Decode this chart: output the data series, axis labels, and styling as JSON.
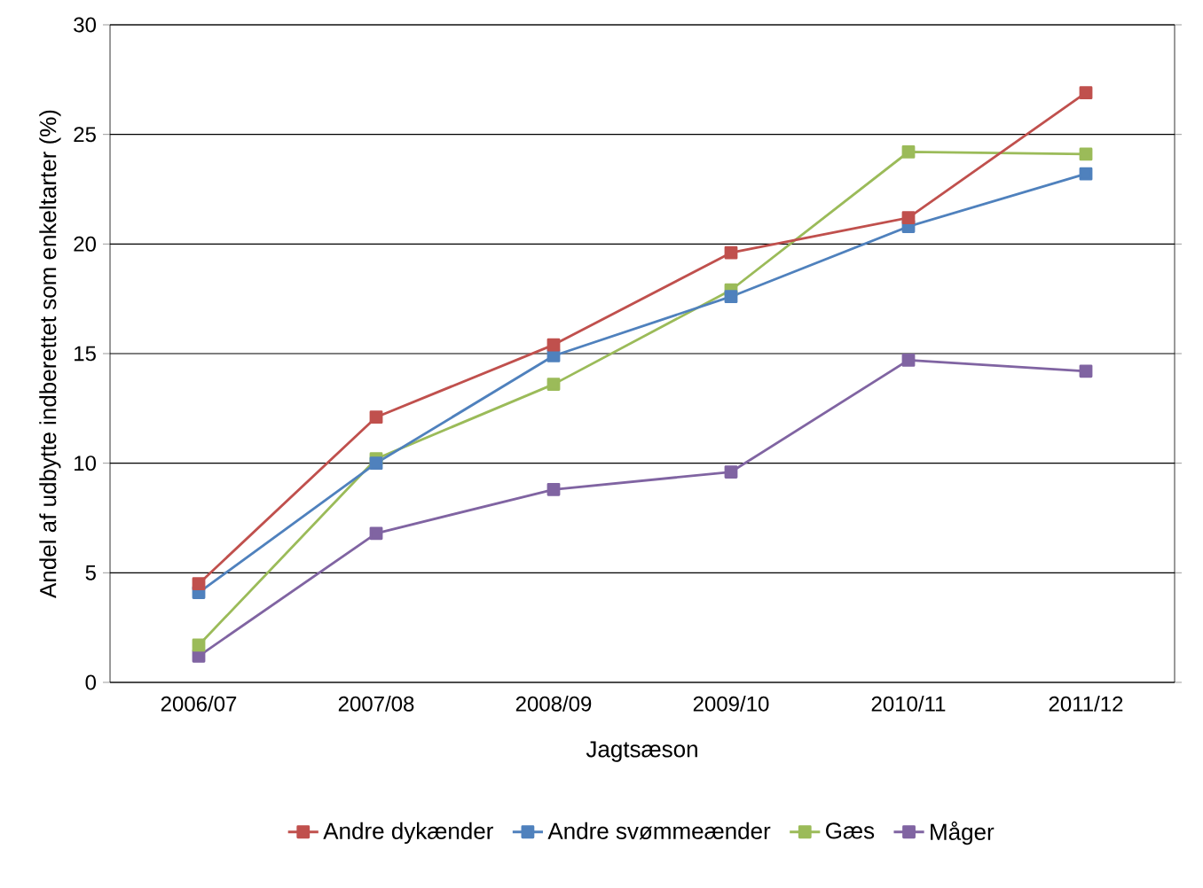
{
  "chart_data": {
    "type": "line",
    "xlabel": "Jagtsæson",
    "ylabel": "Andel af udbytte indberettet som enkeltarter (%)",
    "categories": [
      "2006/07",
      "2007/08",
      "2008/09",
      "2009/10",
      "2010/11",
      "2011/12"
    ],
    "series": [
      {
        "name": "Andre dykænder",
        "color": "#c0504d",
        "values": [
          4.5,
          12.1,
          15.4,
          19.6,
          21.2,
          26.9
        ]
      },
      {
        "name": "Andre svømmeænder",
        "color": "#4f81bd",
        "values": [
          4.1,
          10.0,
          14.9,
          17.6,
          20.8,
          23.2
        ]
      },
      {
        "name": "Gæs",
        "color": "#9bbb59",
        "values": [
          1.7,
          10.2,
          13.6,
          17.9,
          24.2,
          24.1
        ]
      },
      {
        "name": "Måger",
        "color": "#8064a2",
        "values": [
          1.2,
          6.8,
          8.8,
          9.6,
          14.7,
          14.2
        ]
      }
    ],
    "ylim": [
      0,
      30
    ],
    "yticks": [
      0,
      5,
      10,
      15,
      20,
      25,
      30
    ],
    "grid": "y",
    "legend": "bottom",
    "marker": "square",
    "line_style": "solid"
  }
}
